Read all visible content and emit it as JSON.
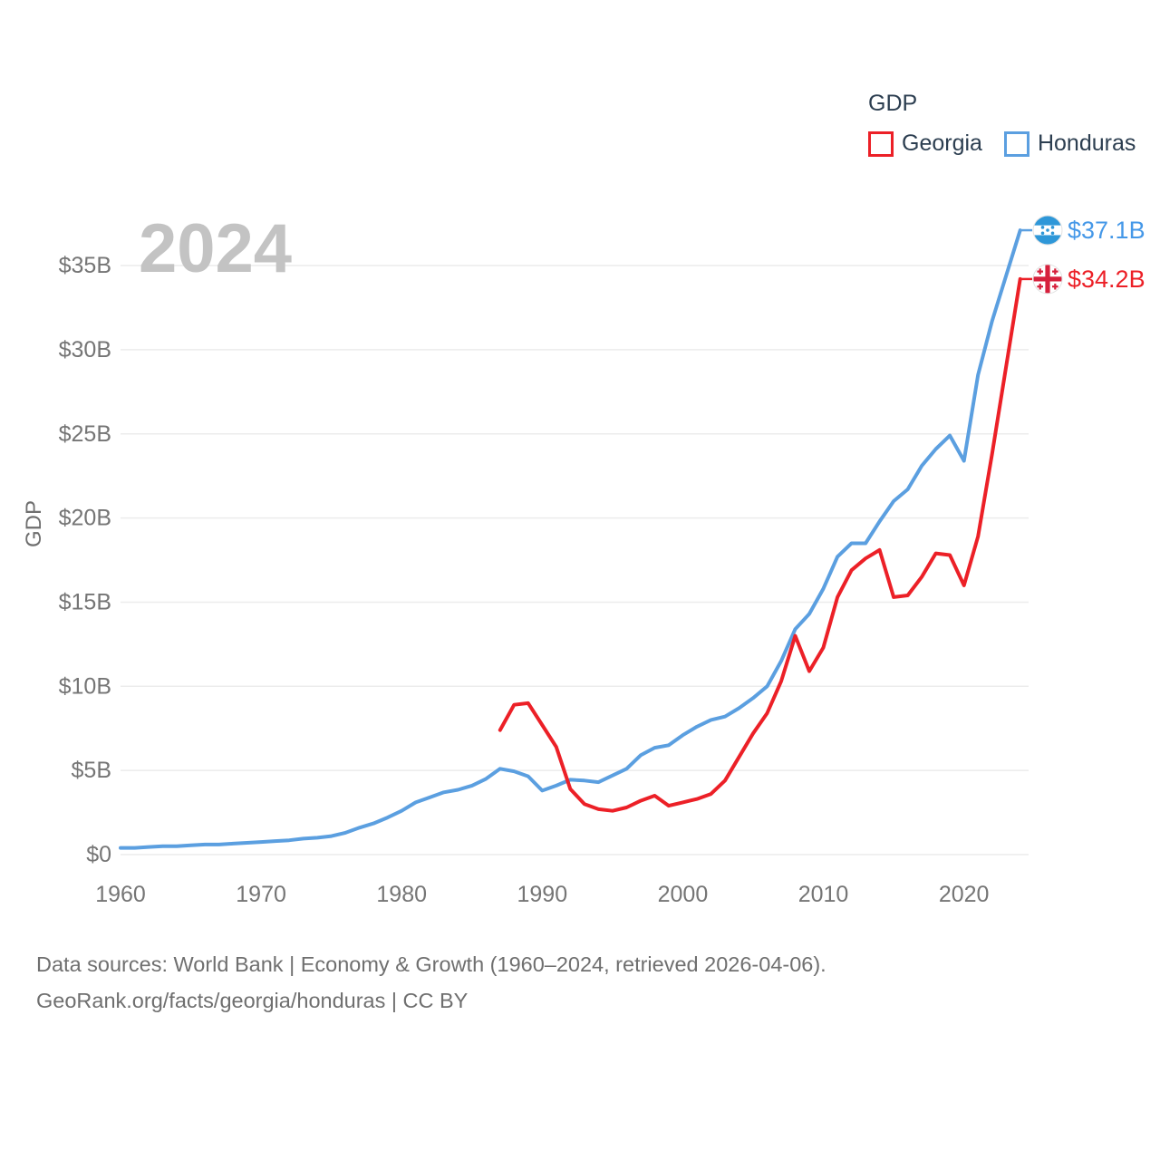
{
  "watermark_year": "2024",
  "legend": {
    "title": "GDP",
    "items": [
      {
        "label": "Georgia",
        "color": "#ec2027"
      },
      {
        "label": "Honduras",
        "color": "#5b9fe0"
      }
    ]
  },
  "end_labels": [
    {
      "country": "Honduras",
      "value": "$37.1B",
      "text_color": "#4598e8",
      "flag": "honduras"
    },
    {
      "country": "Georgia",
      "value": "$34.2B",
      "text_color": "#ec2027",
      "flag": "georgia"
    }
  ],
  "footer": {
    "line1": "Data sources: World Bank | Economy & Growth (1960–2024, retrieved 2026-04-06).",
    "line2": "GeoRank.org/facts/georgia/honduras | CC BY"
  },
  "chart_data": {
    "type": "line",
    "title": "GDP",
    "ylabel": "GDP",
    "xlabel": "",
    "grid": true,
    "legend_position": "top-right",
    "xlim": [
      1960,
      2024.6
    ],
    "ylim": [
      0,
      37.5
    ],
    "x_ticks": [
      1960,
      1970,
      1980,
      1990,
      2000,
      2010,
      2020
    ],
    "y_ticks": [
      {
        "v": 0,
        "label": "$0"
      },
      {
        "v": 5,
        "label": "$5B"
      },
      {
        "v": 10,
        "label": "$10B"
      },
      {
        "v": 15,
        "label": "$15B"
      },
      {
        "v": 20,
        "label": "$20B"
      },
      {
        "v": 25,
        "label": "$25B"
      },
      {
        "v": 30,
        "label": "$30B"
      },
      {
        "v": 35,
        "label": "$35B"
      }
    ],
    "unit": "billions USD",
    "series": [
      {
        "name": "Honduras",
        "color": "#5b9fe0",
        "start_year": 1960,
        "end_value": 37.1,
        "values": [
          0.4,
          0.4,
          0.45,
          0.5,
          0.5,
          0.55,
          0.6,
          0.6,
          0.65,
          0.7,
          0.75,
          0.8,
          0.85,
          0.95,
          1.0,
          1.1,
          1.3,
          1.6,
          1.85,
          2.2,
          2.6,
          3.1,
          3.4,
          3.7,
          3.85,
          4.1,
          4.5,
          5.1,
          4.95,
          4.65,
          3.8,
          4.1,
          4.45,
          4.4,
          4.3,
          4.7,
          5.1,
          5.9,
          6.35,
          6.5,
          7.1,
          7.6,
          8.0,
          8.2,
          8.7,
          9.3,
          10.0,
          11.5,
          13.4,
          14.3,
          15.8,
          17.7,
          18.5,
          18.5,
          19.8,
          21.0,
          21.7,
          23.1,
          24.1,
          24.9,
          23.4,
          28.5,
          31.7,
          34.4,
          37.1
        ]
      },
      {
        "name": "Georgia",
        "color": "#ec2027",
        "start_year": 1987,
        "end_value": 34.2,
        "values": [
          7.4,
          8.9,
          9.0,
          7.7,
          6.4,
          3.9,
          3.0,
          2.7,
          2.6,
          2.8,
          3.2,
          3.5,
          2.9,
          3.1,
          3.3,
          3.6,
          4.4,
          5.8,
          7.2,
          8.4,
          10.3,
          13.0,
          10.9,
          12.3,
          15.3,
          16.9,
          17.6,
          18.1,
          15.3,
          15.4,
          16.5,
          17.9,
          17.8,
          16.0,
          18.9,
          23.8,
          29.0,
          34.2
        ]
      }
    ]
  }
}
